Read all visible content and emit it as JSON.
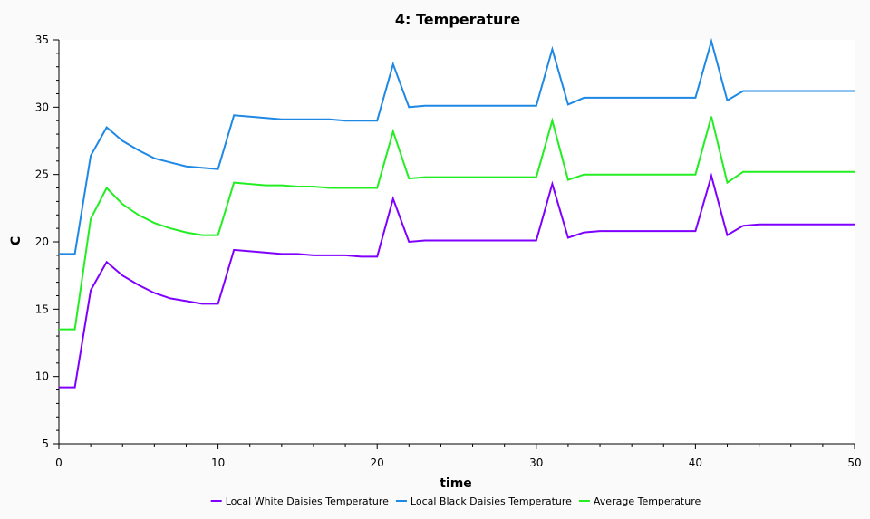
{
  "chart_data": {
    "type": "line",
    "title": "4: Temperature",
    "xlabel": "time",
    "ylabel": "C",
    "xlim": [
      0,
      50
    ],
    "ylim": [
      5,
      35
    ],
    "x_ticks": [
      "0",
      "10",
      "20",
      "30",
      "40",
      "50"
    ],
    "y_ticks": [
      "5",
      "10",
      "15",
      "20",
      "25",
      "30",
      "35"
    ],
    "grid": false,
    "legend_position": "bottom",
    "x": [
      0,
      1,
      2,
      3,
      4,
      5,
      6,
      7,
      8,
      9,
      10,
      11,
      12,
      13,
      14,
      15,
      16,
      17,
      18,
      19,
      20,
      21,
      22,
      23,
      24,
      25,
      26,
      27,
      28,
      29,
      30,
      31,
      32,
      33,
      34,
      35,
      36,
      37,
      38,
      39,
      40,
      41,
      42,
      43,
      44,
      45,
      46,
      47,
      48,
      49,
      50
    ],
    "series": [
      {
        "name": "Local White Daisies Temperature",
        "color": "#7f00ff",
        "values": [
          9.2,
          9.2,
          16.4,
          18.5,
          17.5,
          16.8,
          16.2,
          15.8,
          15.6,
          15.4,
          15.4,
          19.4,
          19.3,
          19.2,
          19.1,
          19.1,
          19.0,
          19.0,
          19.0,
          18.9,
          18.9,
          23.2,
          20.0,
          20.1,
          20.1,
          20.1,
          20.1,
          20.1,
          20.1,
          20.1,
          20.1,
          24.3,
          20.3,
          20.7,
          20.8,
          20.8,
          20.8,
          20.8,
          20.8,
          20.8,
          20.8,
          24.9,
          20.5,
          21.2,
          21.3,
          21.3,
          21.3,
          21.3,
          21.3,
          21.3,
          21.3
        ]
      },
      {
        "name": "Local Black Daisies Temperature",
        "color": "#1e88e5",
        "values": [
          19.1,
          19.1,
          26.4,
          28.5,
          27.5,
          26.8,
          26.2,
          25.9,
          25.6,
          25.5,
          25.4,
          29.4,
          29.3,
          29.2,
          29.1,
          29.1,
          29.1,
          29.1,
          29.0,
          29.0,
          29.0,
          33.2,
          30.0,
          30.1,
          30.1,
          30.1,
          30.1,
          30.1,
          30.1,
          30.1,
          30.1,
          34.3,
          30.2,
          30.7,
          30.7,
          30.7,
          30.7,
          30.7,
          30.7,
          30.7,
          30.7,
          34.9,
          30.5,
          31.2,
          31.2,
          31.2,
          31.2,
          31.2,
          31.2,
          31.2,
          31.2
        ]
      },
      {
        "name": "Average Temperature",
        "color": "#22ee22",
        "values": [
          13.5,
          13.5,
          21.7,
          24.0,
          22.8,
          22.0,
          21.4,
          21.0,
          20.7,
          20.5,
          20.5,
          24.4,
          24.3,
          24.2,
          24.2,
          24.1,
          24.1,
          24.0,
          24.0,
          24.0,
          24.0,
          28.2,
          24.7,
          24.8,
          24.8,
          24.8,
          24.8,
          24.8,
          24.8,
          24.8,
          24.8,
          29.0,
          24.6,
          25.0,
          25.0,
          25.0,
          25.0,
          25.0,
          25.0,
          25.0,
          25.0,
          29.3,
          24.4,
          25.2,
          25.2,
          25.2,
          25.2,
          25.2,
          25.2,
          25.2,
          25.2
        ]
      }
    ]
  }
}
